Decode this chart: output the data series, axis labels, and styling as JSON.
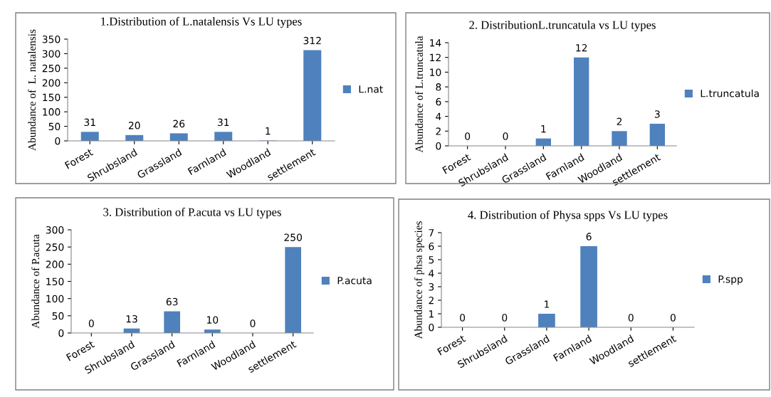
{
  "chart_data": [
    {
      "type": "bar",
      "title": "1.Distribution of L.natalensis Vs LU types",
      "ylabel": "Abundance of  L. natalensis",
      "categories": [
        "Forest",
        "Shrubsland",
        "Grassland",
        "Farnland",
        "Woodland",
        "settlement"
      ],
      "series": [
        {
          "name": "L.nat",
          "color": "#4f81bd",
          "values": [
            31,
            20,
            26,
            31,
            1,
            312
          ]
        }
      ],
      "ylim": [
        0,
        350
      ],
      "yticks": [
        0,
        50,
        100,
        150,
        200,
        250,
        300,
        350
      ],
      "data_labels": true,
      "legend": "right",
      "grid": false
    },
    {
      "type": "bar",
      "title": "2. DistributionL.truncatula vs LU types",
      "ylabel": "Abundance of L.truncatula",
      "categories": [
        "Forest",
        "Shrubsland",
        "Grassland",
        "Farnland",
        "Woodland",
        "settlement"
      ],
      "series": [
        {
          "name": "L.truncatula",
          "color": "#4f81bd",
          "values": [
            0,
            0,
            1,
            12,
            2,
            3
          ]
        }
      ],
      "ylim": [
        0,
        14
      ],
      "yticks": [
        0,
        2,
        4,
        6,
        8,
        10,
        12,
        14
      ],
      "data_labels": true,
      "legend": "right",
      "grid": false
    },
    {
      "type": "bar",
      "title": "3. Distribution of P.acuta vs LU types",
      "ylabel": "Abundance of P.acuta",
      "categories": [
        "Forest",
        "Shrubsland",
        "Grassland",
        "Farnland",
        "Woodland",
        "settlement"
      ],
      "series": [
        {
          "name": "P.acuta",
          "color": "#4f81bd",
          "values": [
            0,
            13,
            63,
            10,
            0,
            250
          ]
        }
      ],
      "ylim": [
        0,
        300
      ],
      "yticks": [
        0,
        50,
        100,
        150,
        200,
        250,
        300
      ],
      "data_labels": true,
      "legend": "right",
      "grid": false
    },
    {
      "type": "bar",
      "title": "4. Distribution of Physa spps Vs LU types",
      "ylabel": "Abundance of phsa species",
      "categories": [
        "Forest",
        "Shrubsland",
        "Grassland",
        "Farnland",
        "Woodland",
        "settlement"
      ],
      "series": [
        {
          "name": "P.spp",
          "color": "#4f81bd",
          "values": [
            0,
            0,
            1,
            6,
            0,
            0
          ]
        }
      ],
      "ylim": [
        0,
        7
      ],
      "yticks": [
        0,
        1,
        2,
        3,
        4,
        5,
        6,
        7
      ],
      "data_labels": true,
      "legend": "right",
      "grid": false
    }
  ]
}
